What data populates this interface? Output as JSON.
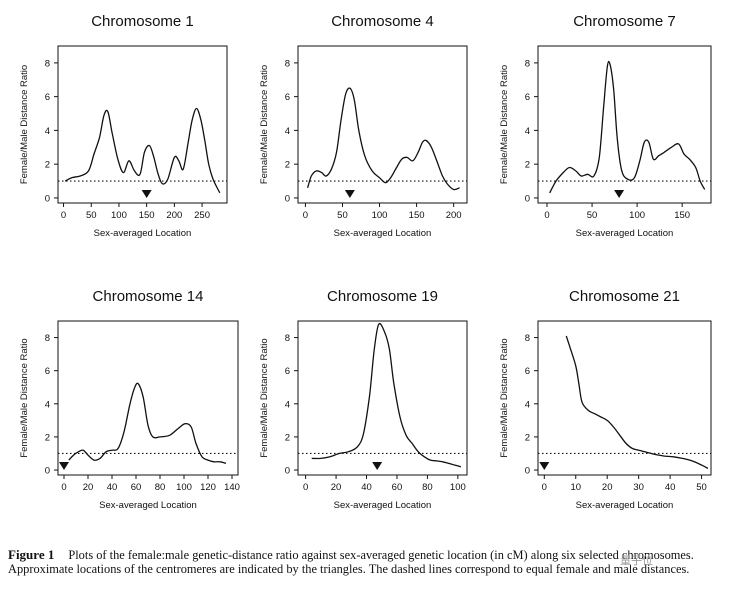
{
  "chart_data": [
    {
      "type": "line",
      "title": "Chromosome 1",
      "xlabel": "Sex-averaged Location",
      "ylabel": "Female/Male Distance Ratio",
      "xlim": [
        -10,
        295
      ],
      "ylim": [
        -0.3,
        9
      ],
      "xticks": [
        0,
        50,
        100,
        150,
        200,
        250
      ],
      "yticks": [
        0,
        2,
        4,
        6,
        8
      ],
      "reference_line_y": 1,
      "centromere_x": 150,
      "series": [
        {
          "x": [
            3,
            15,
            30,
            45,
            55,
            65,
            73,
            80,
            88,
            98,
            108,
            118,
            128,
            138,
            146,
            155,
            163,
            170,
            178,
            188,
            200,
            208,
            216,
            225,
            232,
            240,
            248,
            255,
            262,
            270,
            282
          ],
          "y": [
            1.0,
            1.2,
            1.3,
            1.6,
            2.6,
            3.6,
            4.9,
            5.1,
            3.8,
            2.3,
            1.5,
            2.2,
            1.6,
            1.4,
            2.7,
            3.1,
            2.4,
            1.5,
            0.85,
            1.1,
            2.4,
            2.2,
            1.7,
            3.3,
            4.6,
            5.3,
            4.6,
            3.4,
            2.0,
            1.1,
            0.3
          ]
        }
      ]
    },
    {
      "type": "line",
      "title": "Chromosome 4",
      "xlabel": "Sex-averaged Location",
      "ylabel": "Female/Male Distance Ratio",
      "xlim": [
        -10,
        218
      ],
      "ylim": [
        -0.3,
        9
      ],
      "xticks": [
        0,
        50,
        100,
        150,
        200
      ],
      "yticks": [
        0,
        2,
        4,
        6,
        8
      ],
      "reference_line_y": 1,
      "centromere_x": 60,
      "series": [
        {
          "x": [
            3,
            8,
            15,
            22,
            28,
            35,
            42,
            48,
            54,
            60,
            66,
            72,
            80,
            90,
            100,
            108,
            115,
            123,
            130,
            137,
            145,
            152,
            158,
            163,
            170,
            178,
            185,
            192,
            200,
            208
          ],
          "y": [
            0.6,
            1.3,
            1.6,
            1.5,
            1.3,
            1.7,
            2.7,
            4.6,
            6.1,
            6.5,
            5.8,
            4.0,
            2.5,
            1.6,
            1.2,
            0.9,
            1.2,
            1.8,
            2.3,
            2.4,
            2.2,
            2.7,
            3.3,
            3.4,
            3.0,
            2.1,
            1.3,
            0.8,
            0.5,
            0.6
          ]
        }
      ]
    },
    {
      "type": "line",
      "title": "Chromosome 7",
      "xlabel": "Sex-averaged Location",
      "ylabel": "Female/Male Distance Ratio",
      "xlim": [
        -10,
        182
      ],
      "ylim": [
        -0.3,
        9
      ],
      "xticks": [
        0,
        50,
        100,
        150
      ],
      "yticks": [
        0,
        2,
        4,
        6,
        8
      ],
      "reference_line_y": 1,
      "centromere_x": 80,
      "series": [
        {
          "x": [
            3,
            10,
            18,
            25,
            32,
            38,
            45,
            52,
            58,
            63,
            67,
            70,
            74,
            78,
            83,
            90,
            97,
            103,
            108,
            113,
            118,
            124,
            130,
            138,
            146,
            152,
            158,
            165,
            170,
            175
          ],
          "y": [
            0.3,
            1.0,
            1.5,
            1.8,
            1.6,
            1.3,
            1.4,
            1.3,
            2.4,
            5.5,
            7.8,
            7.9,
            6.4,
            3.5,
            1.6,
            1.1,
            1.2,
            2.2,
            3.3,
            3.3,
            2.3,
            2.5,
            2.7,
            3.0,
            3.2,
            2.6,
            2.3,
            1.8,
            1.0,
            0.5
          ]
        }
      ]
    },
    {
      "type": "line",
      "title": "Chromosome 14",
      "xlabel": "Sex-averaged Location",
      "ylabel": "Female/Male Distance Ratio",
      "xlim": [
        -5,
        145
      ],
      "ylim": [
        -0.3,
        9
      ],
      "xticks": [
        0,
        20,
        40,
        60,
        80,
        100,
        120,
        140
      ],
      "yticks": [
        0,
        2,
        4,
        6,
        8
      ],
      "reference_line_y": 1,
      "centromere_x": 0,
      "series": [
        {
          "x": [
            4,
            8,
            12,
            16,
            20,
            25,
            30,
            35,
            40,
            45,
            50,
            55,
            59,
            62,
            66,
            70,
            74,
            80,
            88,
            95,
            101,
            106,
            110,
            115,
            120,
            125,
            130,
            135
          ],
          "y": [
            0.6,
            0.9,
            1.1,
            1.2,
            0.9,
            0.6,
            0.7,
            1.1,
            1.2,
            1.3,
            2.3,
            4.0,
            5.0,
            5.2,
            4.4,
            2.7,
            2.0,
            2.0,
            2.1,
            2.5,
            2.8,
            2.6,
            1.6,
            0.8,
            0.6,
            0.5,
            0.5,
            0.4
          ]
        }
      ]
    },
    {
      "type": "line",
      "title": "Chromosome 19",
      "xlabel": "Sex-averaged Location",
      "ylabel": "Female/Male Distance Ratio",
      "xlim": [
        -5,
        106
      ],
      "ylim": [
        -0.3,
        9
      ],
      "xticks": [
        0,
        20,
        40,
        60,
        80,
        100
      ],
      "yticks": [
        0,
        2,
        4,
        6,
        8
      ],
      "reference_line_y": 1,
      "centromere_x": 47,
      "series": [
        {
          "x": [
            4,
            10,
            16,
            22,
            28,
            34,
            38,
            42,
            45,
            48,
            52,
            55,
            58,
            62,
            66,
            70,
            74,
            78,
            82,
            86,
            90,
            94,
            98,
            102
          ],
          "y": [
            0.7,
            0.7,
            0.8,
            1.0,
            1.1,
            1.4,
            2.2,
            4.5,
            7.2,
            8.8,
            8.3,
            7.3,
            5.2,
            3.2,
            2.1,
            1.6,
            1.1,
            0.8,
            0.6,
            0.55,
            0.5,
            0.4,
            0.3,
            0.2
          ]
        }
      ]
    },
    {
      "type": "line",
      "title": "Chromosome 21",
      "xlabel": "Sex-averaged Location",
      "ylabel": "Female/Male Distance Ratio",
      "xlim": [
        -2,
        53
      ],
      "ylim": [
        -0.3,
        9
      ],
      "xticks": [
        0,
        10,
        20,
        30,
        40,
        50
      ],
      "yticks": [
        0,
        2,
        4,
        6,
        8
      ],
      "reference_line_y": 1,
      "centromere_x": 0,
      "series": [
        {
          "x": [
            7,
            8,
            10,
            11,
            12,
            14,
            16,
            18,
            20,
            22,
            24,
            26,
            28,
            30,
            32,
            35,
            38,
            41,
            44,
            47,
            50,
            52
          ],
          "y": [
            8.1,
            7.5,
            6.3,
            5.2,
            4.1,
            3.6,
            3.4,
            3.2,
            3.0,
            2.6,
            2.1,
            1.6,
            1.3,
            1.2,
            1.1,
            0.95,
            0.85,
            0.8,
            0.7,
            0.55,
            0.3,
            0.1
          ]
        }
      ]
    }
  ],
  "caption": {
    "label": "Figure 1",
    "text": "Plots of the female:male genetic-distance ratio against sex-averaged genetic location (in cM) along six selected chromosomes. Approximate locations of the centromeres are indicated by the triangles. The dashed lines correspond to equal female and male distances."
  },
  "watermark": "量子位"
}
